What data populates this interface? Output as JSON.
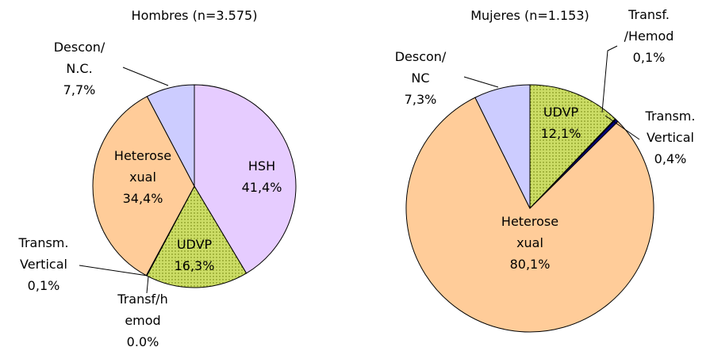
{
  "chart_data": [
    {
      "type": "pie",
      "title": "Hombres (n=3.575)",
      "categories": [
        "HSH",
        "UDVP",
        "Transf/h\nemod",
        "Transm.\nVertical",
        "Heterose\nxual",
        "Descon/\nN.C."
      ],
      "values": [
        41.4,
        16.3,
        0.0,
        0.1,
        34.4,
        7.7
      ],
      "value_labels": [
        "41,4%",
        "16,3%",
        "0.0%",
        "0,1%",
        "34,4%",
        "7,7%"
      ],
      "colors": [
        "#e6ccff",
        "#ccdd66",
        "#333399",
        "#000080",
        "#ffcc99",
        "#ccccff"
      ]
    },
    {
      "type": "pie",
      "title": "Mujeres (n=1.153)",
      "categories": [
        "UDVP",
        "Transf.\n/Hemod",
        "Transm.\nVertical",
        "Heterose\nxual",
        "Descon/\nNC"
      ],
      "values": [
        12.1,
        0.1,
        0.4,
        80.1,
        7.3
      ],
      "value_labels": [
        "12,1%",
        "0,1%",
        "0,4%",
        "80,1%",
        "7,3%"
      ],
      "colors": [
        "#ccdd66",
        "#333399",
        "#000080",
        "#ffcc99",
        "#ccccff"
      ]
    }
  ]
}
